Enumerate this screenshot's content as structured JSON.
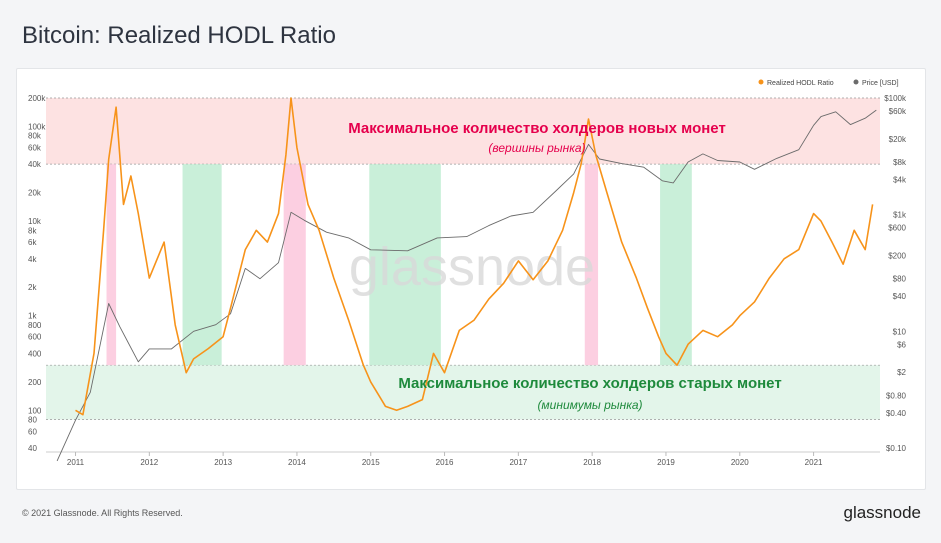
{
  "header": {
    "title": "Bitcoin: Realized HODL Ratio"
  },
  "footer": {
    "copyright": "© 2021 Glassnode. All Rights Reserved.",
    "brand": "glassnode"
  },
  "watermark": "glassnode",
  "colors": {
    "hodl_series": "#f7931a",
    "price_series": "#6b6b6b",
    "top_band": "#fde2e2",
    "bottom_band": "#e3f5ea",
    "top_zone": "#fcc7dc",
    "bottom_zone": "#bfecd2",
    "top_text": "#e5004c",
    "bottom_text": "#1e8a3c"
  },
  "chart_data": {
    "type": "line",
    "left_axis": {
      "scale": "log",
      "range": [
        40,
        200000
      ],
      "ticks": [
        40,
        60,
        80,
        100,
        200,
        400,
        600,
        800,
        1000,
        2000,
        4000,
        6000,
        8000,
        10000,
        20000,
        40000,
        60000,
        80000,
        100000,
        200000
      ],
      "tick_labels": [
        "40",
        "60",
        "80",
        "100",
        "200",
        "400",
        "600",
        "800",
        "1k",
        "2k",
        "4k",
        "6k",
        "8k",
        "10k",
        "20k",
        "40k",
        "60k",
        "80k",
        "100k",
        "200k"
      ]
    },
    "right_axis": {
      "scale": "log",
      "range": [
        0.1,
        100000
      ],
      "ticks": [
        0.1,
        0.4,
        0.8,
        2,
        6,
        10,
        40,
        80,
        200,
        600,
        1000,
        4000,
        8000,
        20000,
        60000,
        100000
      ],
      "tick_labels": [
        "$0.10",
        "$0.40",
        "$0.80",
        "$2",
        "$6",
        "$10",
        "$40",
        "$80",
        "$200",
        "$600",
        "$1k",
        "$4k",
        "$8k",
        "$20k",
        "$60k",
        "$100k"
      ]
    },
    "x_axis": {
      "range": [
        2010.6,
        2021.9
      ],
      "ticks": [
        2011,
        2012,
        2013,
        2014,
        2015,
        2016,
        2017,
        2018,
        2019,
        2020,
        2021
      ],
      "tick_labels": [
        "2011",
        "2012",
        "2013",
        "2014",
        "2015",
        "2016",
        "2017",
        "2018",
        "2019",
        "2020",
        "2021"
      ]
    },
    "legend": {
      "position": "top-right",
      "items": [
        "Realized HODL Ratio",
        "Price [USD]"
      ]
    },
    "series": [
      {
        "name": "Realized HODL Ratio",
        "axis": "left",
        "color": "#f7931a",
        "x": [
          2011.0,
          2011.1,
          2011.25,
          2011.38,
          2011.45,
          2011.55,
          2011.65,
          2011.75,
          2011.85,
          2012.0,
          2012.2,
          2012.35,
          2012.5,
          2012.6,
          2012.8,
          2013.0,
          2013.1,
          2013.3,
          2013.45,
          2013.6,
          2013.75,
          2013.85,
          2013.92,
          2014.0,
          2014.15,
          2014.3,
          2014.5,
          2014.7,
          2014.9,
          2015.0,
          2015.2,
          2015.35,
          2015.5,
          2015.7,
          2015.85,
          2016.0,
          2016.2,
          2016.4,
          2016.6,
          2016.8,
          2017.0,
          2017.2,
          2017.4,
          2017.6,
          2017.75,
          2017.85,
          2017.95,
          2018.05,
          2018.2,
          2018.4,
          2018.6,
          2018.75,
          2018.9,
          2019.0,
          2019.15,
          2019.3,
          2019.5,
          2019.7,
          2019.9,
          2020.0,
          2020.2,
          2020.4,
          2020.6,
          2020.8,
          2021.0,
          2021.1,
          2021.25,
          2021.4,
          2021.55,
          2021.7,
          2021.8
        ],
        "values": [
          100,
          90,
          400,
          8000,
          45000,
          160000,
          15000,
          30000,
          12000,
          2500,
          6000,
          800,
          250,
          350,
          450,
          600,
          1200,
          5000,
          8000,
          6000,
          12000,
          50000,
          200000,
          60000,
          15000,
          8000,
          2500,
          900,
          300,
          200,
          110,
          100,
          110,
          130,
          400,
          250,
          700,
          900,
          1500,
          2200,
          3800,
          2400,
          3800,
          8000,
          20000,
          40000,
          120000,
          50000,
          20000,
          6000,
          2500,
          1200,
          600,
          400,
          300,
          500,
          700,
          600,
          800,
          1000,
          1400,
          2500,
          4000,
          5000,
          12000,
          10000,
          6000,
          3500,
          8000,
          5000,
          15000
        ]
      },
      {
        "name": "Price [USD]",
        "axis": "right",
        "color": "#6b6b6b",
        "x": [
          2010.75,
          2011.0,
          2011.2,
          2011.45,
          2011.6,
          2011.85,
          2012.0,
          2012.3,
          2012.6,
          2012.9,
          2013.1,
          2013.3,
          2013.5,
          2013.75,
          2013.92,
          2014.1,
          2014.4,
          2014.7,
          2015.0,
          2015.5,
          2015.9,
          2016.3,
          2016.6,
          2016.9,
          2017.2,
          2017.5,
          2017.75,
          2017.95,
          2018.1,
          2018.4,
          2018.7,
          2018.95,
          2019.1,
          2019.3,
          2019.5,
          2019.7,
          2020.0,
          2020.2,
          2020.5,
          2020.8,
          2021.0,
          2021.1,
          2021.3,
          2021.5,
          2021.7,
          2021.85
        ],
        "values": [
          0.06,
          0.3,
          0.9,
          30,
          12,
          3,
          5,
          5,
          10,
          13,
          20,
          120,
          80,
          150,
          1100,
          800,
          500,
          400,
          250,
          240,
          400,
          420,
          650,
          950,
          1100,
          2500,
          5000,
          16000,
          9000,
          7500,
          6500,
          3800,
          3500,
          8000,
          11000,
          8500,
          8000,
          6000,
          9200,
          13000,
          34000,
          48000,
          58000,
          35000,
          45000,
          62000
        ]
      }
    ],
    "zones": [
      {
        "label": "top",
        "x_ranges": [
          [
            2011.42,
            2011.55
          ],
          [
            2013.82,
            2014.12
          ],
          [
            2017.9,
            2018.08
          ]
        ]
      },
      {
        "label": "bottom",
        "x_ranges": [
          [
            2012.45,
            2012.98
          ],
          [
            2014.98,
            2015.95
          ],
          [
            2018.92,
            2019.35
          ]
        ]
      }
    ],
    "bands": [
      {
        "label": "top",
        "range": [
          40000,
          200000
        ]
      },
      {
        "label": "bottom",
        "range": [
          80,
          300
        ]
      }
    ],
    "annotations": {
      "top_title": "Максимальное количество холдеров новых монет",
      "top_sub": "(вершины рынка)",
      "bottom_title": "Максимальное количество холдеров старых монет",
      "bottom_sub": "(минимумы рынка)"
    }
  }
}
